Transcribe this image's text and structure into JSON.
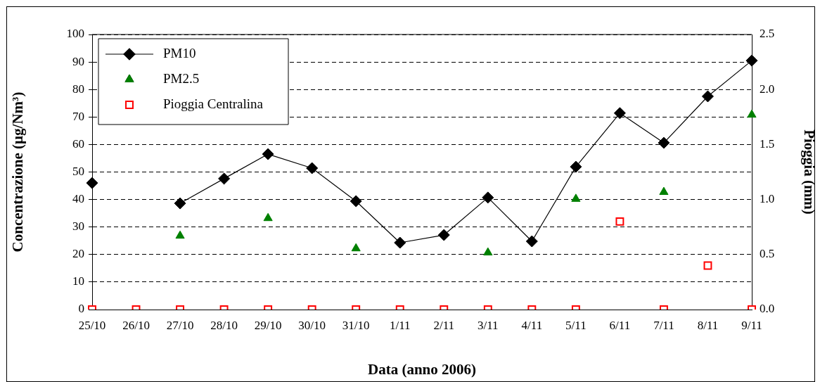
{
  "chart_data": {
    "type": "line",
    "xlabel": "Data (anno 2006)",
    "ylabel": "Concentrazione (µg/Nm³)",
    "y2label": "Pioggia (mm)",
    "categories": [
      "25/10",
      "26/10",
      "27/10",
      "28/10",
      "29/10",
      "30/10",
      "31/10",
      "1/11",
      "2/11",
      "3/11",
      "4/11",
      "5/11",
      "6/11",
      "7/11",
      "8/11",
      "9/11"
    ],
    "series": [
      {
        "name": "PM10",
        "type": "line",
        "marker": "diamond",
        "line_style": "solid",
        "color": "#000000",
        "values": [
          46.0,
          null,
          38.6,
          47.6,
          56.5,
          51.4,
          39.4,
          24.3,
          27.1,
          40.7,
          24.8,
          51.9,
          71.4,
          60.6,
          77.5,
          90.5
        ]
      },
      {
        "name": "PM2.5",
        "type": "scatter",
        "marker": "triangle",
        "color": "#008000",
        "values": [
          null,
          null,
          26.8,
          null,
          33.2,
          null,
          22.2,
          null,
          null,
          20.7,
          null,
          40.2,
          null,
          42.7,
          null,
          70.8
        ]
      },
      {
        "name": "Pioggia Centralina",
        "type": "scatter",
        "marker": "square",
        "axis": "y2",
        "color": "#ff0000",
        "values": [
          0,
          0,
          0,
          0,
          0,
          0,
          0,
          0,
          0,
          0,
          0,
          0,
          0.8,
          0,
          0.4,
          0
        ]
      }
    ],
    "ylim": [
      0,
      100
    ],
    "yticks": [
      0,
      10,
      20,
      30,
      40,
      50,
      60,
      70,
      80,
      90,
      100
    ],
    "y2lim": [
      0,
      2.5
    ],
    "y2ticks": [
      {
        "value": 0,
        "label": "0.0"
      },
      {
        "value": 0.5,
        "label": "0.5"
      },
      {
        "value": 1,
        "label": "1.0"
      },
      {
        "value": 1.5,
        "label": "1.5"
      },
      {
        "value": 2,
        "label": "2.0"
      },
      {
        "value": 2.5,
        "label": "2.5"
      }
    ],
    "grid": "y",
    "legend": "top left"
  }
}
